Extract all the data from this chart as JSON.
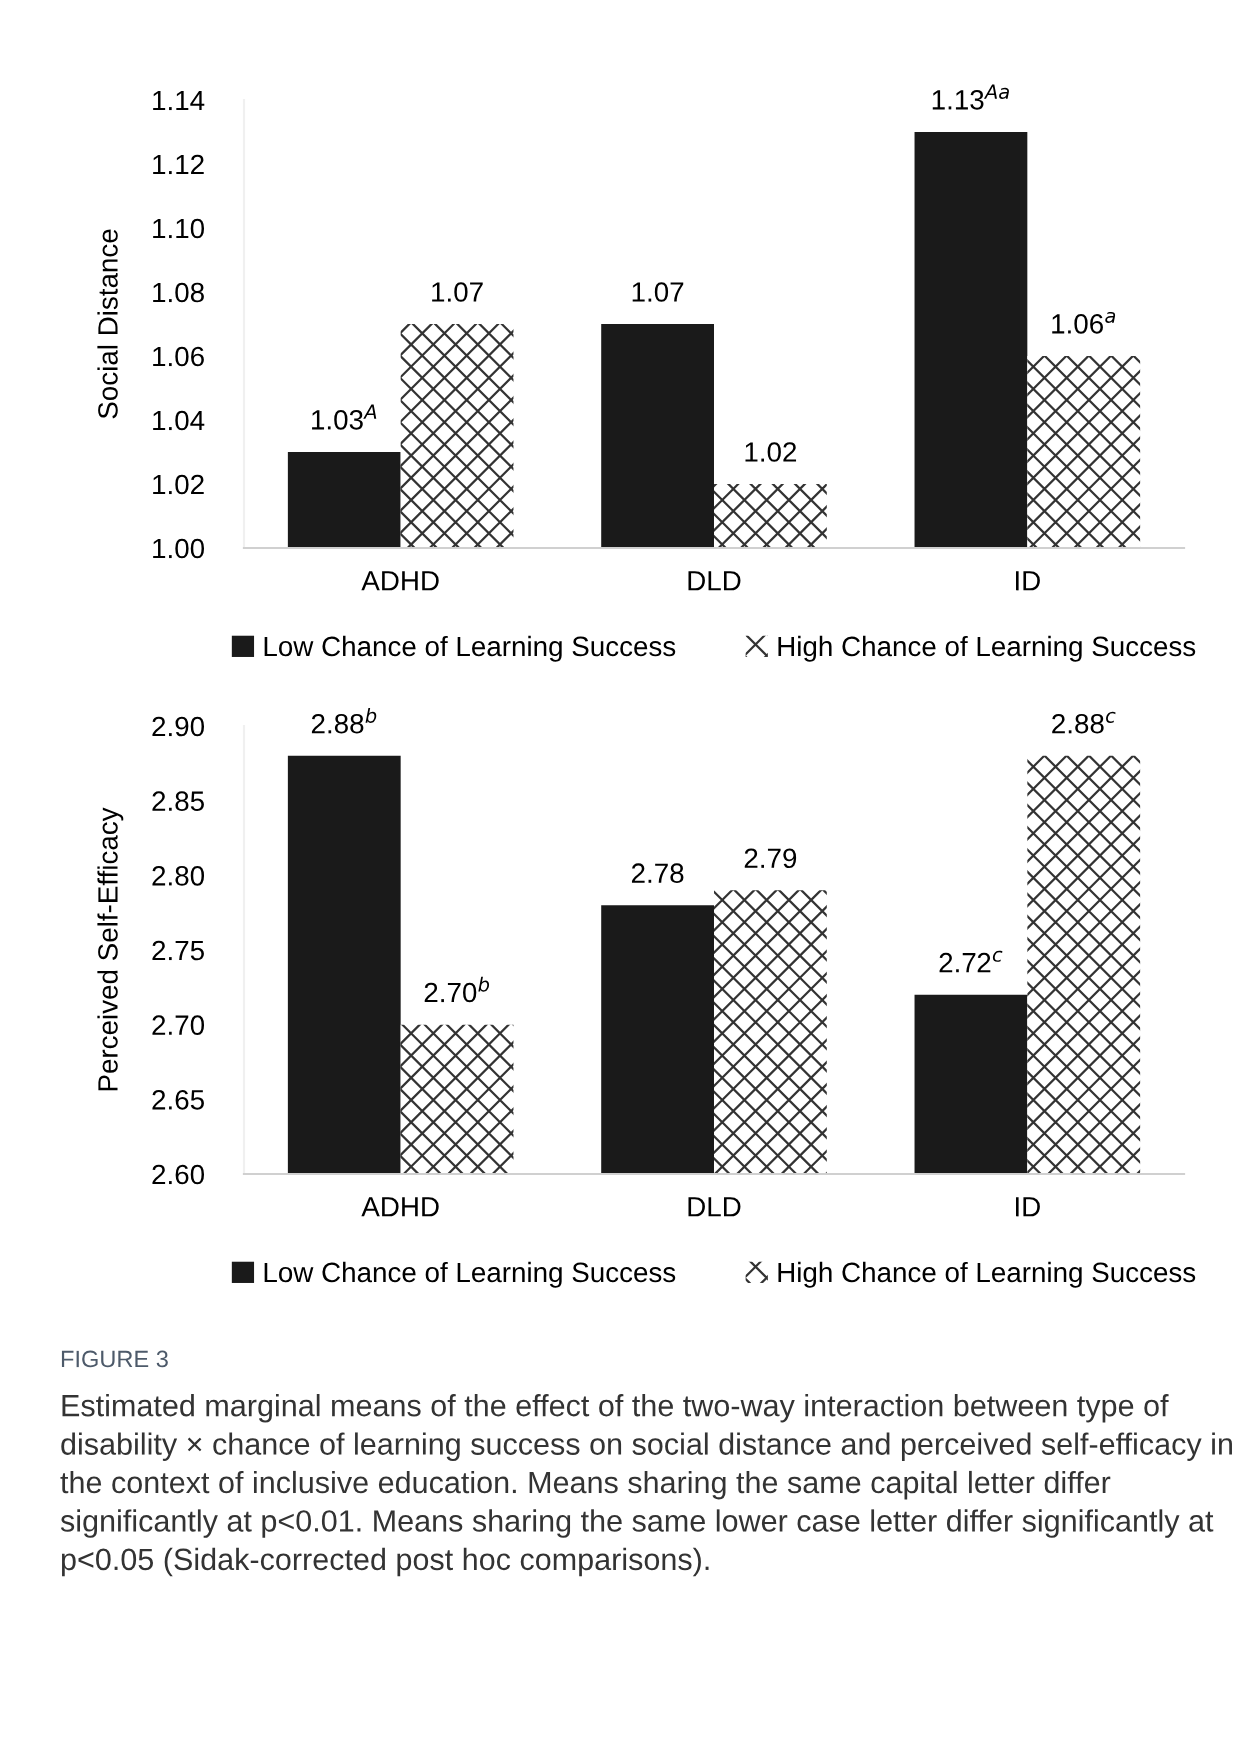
{
  "chart_data": [
    {
      "type": "bar",
      "ylabel": "Social Distance",
      "categories": [
        "ADHD",
        "DLD",
        "ID"
      ],
      "ylim": [
        1.0,
        1.14
      ],
      "yticks": [
        {
          "value": 1.0,
          "label": "1.00"
        },
        {
          "value": 1.02,
          "label": "1.02"
        },
        {
          "value": 1.04,
          "label": "1.04"
        },
        {
          "value": 1.06,
          "label": "1.06"
        },
        {
          "value": 1.08,
          "label": "1.08"
        },
        {
          "value": 1.1,
          "label": "1.10"
        },
        {
          "value": 1.12,
          "label": "1.12"
        },
        {
          "value": 1.14,
          "label": "1.14"
        }
      ],
      "grid": false,
      "legend": "bottom",
      "series": [
        {
          "name": "Low Chance of Learning Success",
          "color": "#1a1a1a",
          "values": [
            1.03,
            1.07,
            1.13
          ],
          "value_labels": [
            "1.03$^{A}$",
            "1.07",
            "1.13$^{Aa}$"
          ]
        },
        {
          "name": "High Chance of Learning Success",
          "color": "#ffffff",
          "values": [
            1.07,
            1.02,
            1.06
          ],
          "value_labels": [
            "1.07",
            "1.02",
            "1.06$^{a}$"
          ]
        }
      ]
    },
    {
      "type": "bar",
      "ylabel": "Perceived Self-Efficacy",
      "categories": [
        "ADHD",
        "DLD",
        "ID"
      ],
      "ylim": [
        2.6,
        2.9
      ],
      "yticks": [
        {
          "value": 2.6,
          "label": "2.60"
        },
        {
          "value": 2.65,
          "label": "2.65"
        },
        {
          "value": 2.7,
          "label": "2.70"
        },
        {
          "value": 2.75,
          "label": "2.75"
        },
        {
          "value": 2.8,
          "label": "2.80"
        },
        {
          "value": 2.85,
          "label": "2.85"
        },
        {
          "value": 2.9,
          "label": "2.90"
        }
      ],
      "grid": false,
      "legend": "bottom",
      "series": [
        {
          "name": "Low Chance of Learning Success",
          "color": "#1a1a1a",
          "values": [
            2.88,
            2.78,
            2.72
          ],
          "value_labels": [
            "2.88$^{b}$",
            "2.78",
            "2.72$^{c}$"
          ]
        },
        {
          "name": "High Chance of Learning Success",
          "color": "#ffffff",
          "values": [
            2.7,
            2.79,
            2.88
          ],
          "value_labels": [
            "2.70$^{b}$",
            "2.79",
            "2.88$^{c}$"
          ]
        }
      ],
      "annotations": [
        "FIGURE 3",
        "Estimated marginal means of the effect of the two-way interaction between type of disability × chance of learning success on social distance and perceived self-efficacy in the context of inclusive education. Means sharing the same capital letter differ significantly at p<0.01. Means sharing the same lower case letter differ significantly at p<0.05 (Sidak-corrected post hoc comparisons)."
      ]
    }
  ]
}
